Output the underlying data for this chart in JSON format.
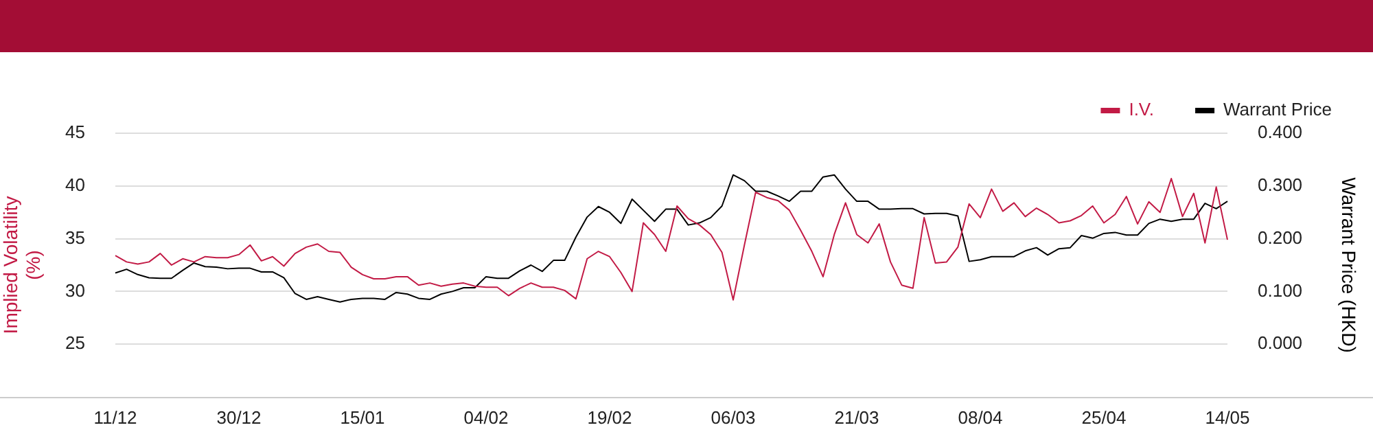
{
  "chart_data": {
    "type": "line",
    "categories": [
      "11/12",
      null,
      null,
      null,
      null,
      null,
      null,
      null,
      null,
      null,
      null,
      "30/12",
      null,
      null,
      null,
      null,
      null,
      null,
      null,
      null,
      null,
      null,
      "15/01",
      null,
      null,
      null,
      null,
      null,
      null,
      null,
      null,
      null,
      null,
      "04/02",
      null,
      null,
      null,
      null,
      null,
      null,
      null,
      null,
      null,
      null,
      "19/02",
      null,
      null,
      null,
      null,
      null,
      null,
      null,
      null,
      null,
      null,
      "06/03",
      null,
      null,
      null,
      null,
      null,
      null,
      null,
      null,
      null,
      null,
      "21/03",
      null,
      null,
      null,
      null,
      null,
      null,
      null,
      null,
      null,
      null,
      "08/04",
      null,
      null,
      null,
      null,
      null,
      null,
      null,
      null,
      null,
      null,
      "25/04",
      null,
      null,
      null,
      null,
      null,
      null,
      null,
      null,
      null,
      null,
      "14/05"
    ],
    "series": [
      {
        "name": "I.V.",
        "color": "#c21a45",
        "values": [
          33.4,
          32.8,
          32.6,
          32.8,
          33.6,
          32.5,
          33.1,
          32.8,
          33.3,
          33.2,
          33.2,
          33.5,
          34.4,
          32.9,
          33.3,
          32.4,
          33.6,
          34.2,
          34.5,
          33.8,
          33.7,
          32.3,
          31.6,
          31.2,
          31.2,
          31.4,
          31.4,
          30.6,
          30.8,
          30.5,
          30.7,
          30.8,
          30.5,
          30.4,
          30.4,
          29.6,
          30.3,
          30.8,
          30.4,
          30.4,
          30.1,
          29.3,
          33.1,
          33.8,
          33.3,
          31.8,
          30.0,
          36.5,
          35.4,
          33.8,
          38.1,
          36.9,
          36.3,
          35.4,
          33.7,
          29.2,
          34.4,
          39.4,
          38.9,
          38.6,
          37.7,
          35.8,
          33.8,
          31.4,
          35.4,
          38.4,
          35.4,
          34.6,
          36.4,
          32.8,
          30.6,
          30.3,
          37.0,
          32.7,
          32.8,
          34.2,
          38.3,
          37.0,
          39.7,
          37.6,
          38.4,
          37.1,
          37.9,
          37.3,
          36.5,
          36.7,
          37.2,
          38.1,
          36.5,
          37.3,
          39.0,
          36.4,
          38.5,
          37.5,
          40.7,
          37.1,
          39.3,
          34.6,
          39.9,
          34.9
        ]
      },
      {
        "name": "Warrant Price",
        "color": "#000000",
        "axis": "y2",
        "values": [
          0.135,
          0.142,
          0.132,
          0.126,
          0.125,
          0.125,
          0.14,
          0.154,
          0.147,
          0.146,
          0.143,
          0.144,
          0.144,
          0.137,
          0.137,
          0.126,
          0.096,
          0.085,
          0.09,
          0.085,
          0.08,
          0.085,
          0.087,
          0.087,
          0.085,
          0.098,
          0.095,
          0.087,
          0.085,
          0.095,
          0.1,
          0.107,
          0.107,
          0.128,
          0.125,
          0.125,
          0.139,
          0.15,
          0.138,
          0.159,
          0.159,
          0.203,
          0.241,
          0.261,
          0.25,
          0.229,
          0.275,
          0.254,
          0.233,
          0.256,
          0.256,
          0.226,
          0.23,
          0.24,
          0.262,
          0.321,
          0.31,
          0.29,
          0.29,
          0.281,
          0.271,
          0.29,
          0.29,
          0.317,
          0.321,
          0.294,
          0.271,
          0.271,
          0.256,
          0.256,
          0.257,
          0.257,
          0.247,
          0.248,
          0.248,
          0.243,
          0.157,
          0.16,
          0.166,
          0.166,
          0.166,
          0.177,
          0.183,
          0.169,
          0.181,
          0.183,
          0.206,
          0.201,
          0.21,
          0.212,
          0.207,
          0.207,
          0.229,
          0.237,
          0.233,
          0.237,
          0.237,
          0.267,
          0.257,
          0.271
        ]
      }
    ],
    "ylabel": "Implied Volatility (%)",
    "y2label": "Warrant Price (HKD)",
    "ylim": [
      20,
      45
    ],
    "yticks": [
      25,
      30,
      35,
      40,
      45
    ],
    "y2lim": [
      -0.1,
      0.4
    ],
    "y2ticks": [
      {
        "value": 0,
        "label": "0.000"
      },
      {
        "value": 0.1,
        "label": "0.100"
      },
      {
        "value": 0.2,
        "label": "0.200"
      },
      {
        "value": 0.3,
        "label": "0.300"
      },
      {
        "value": 0.4,
        "label": "0.400"
      }
    ],
    "grid": "y",
    "legend": "top right",
    "marker": "none",
    "line_style": "solid"
  }
}
